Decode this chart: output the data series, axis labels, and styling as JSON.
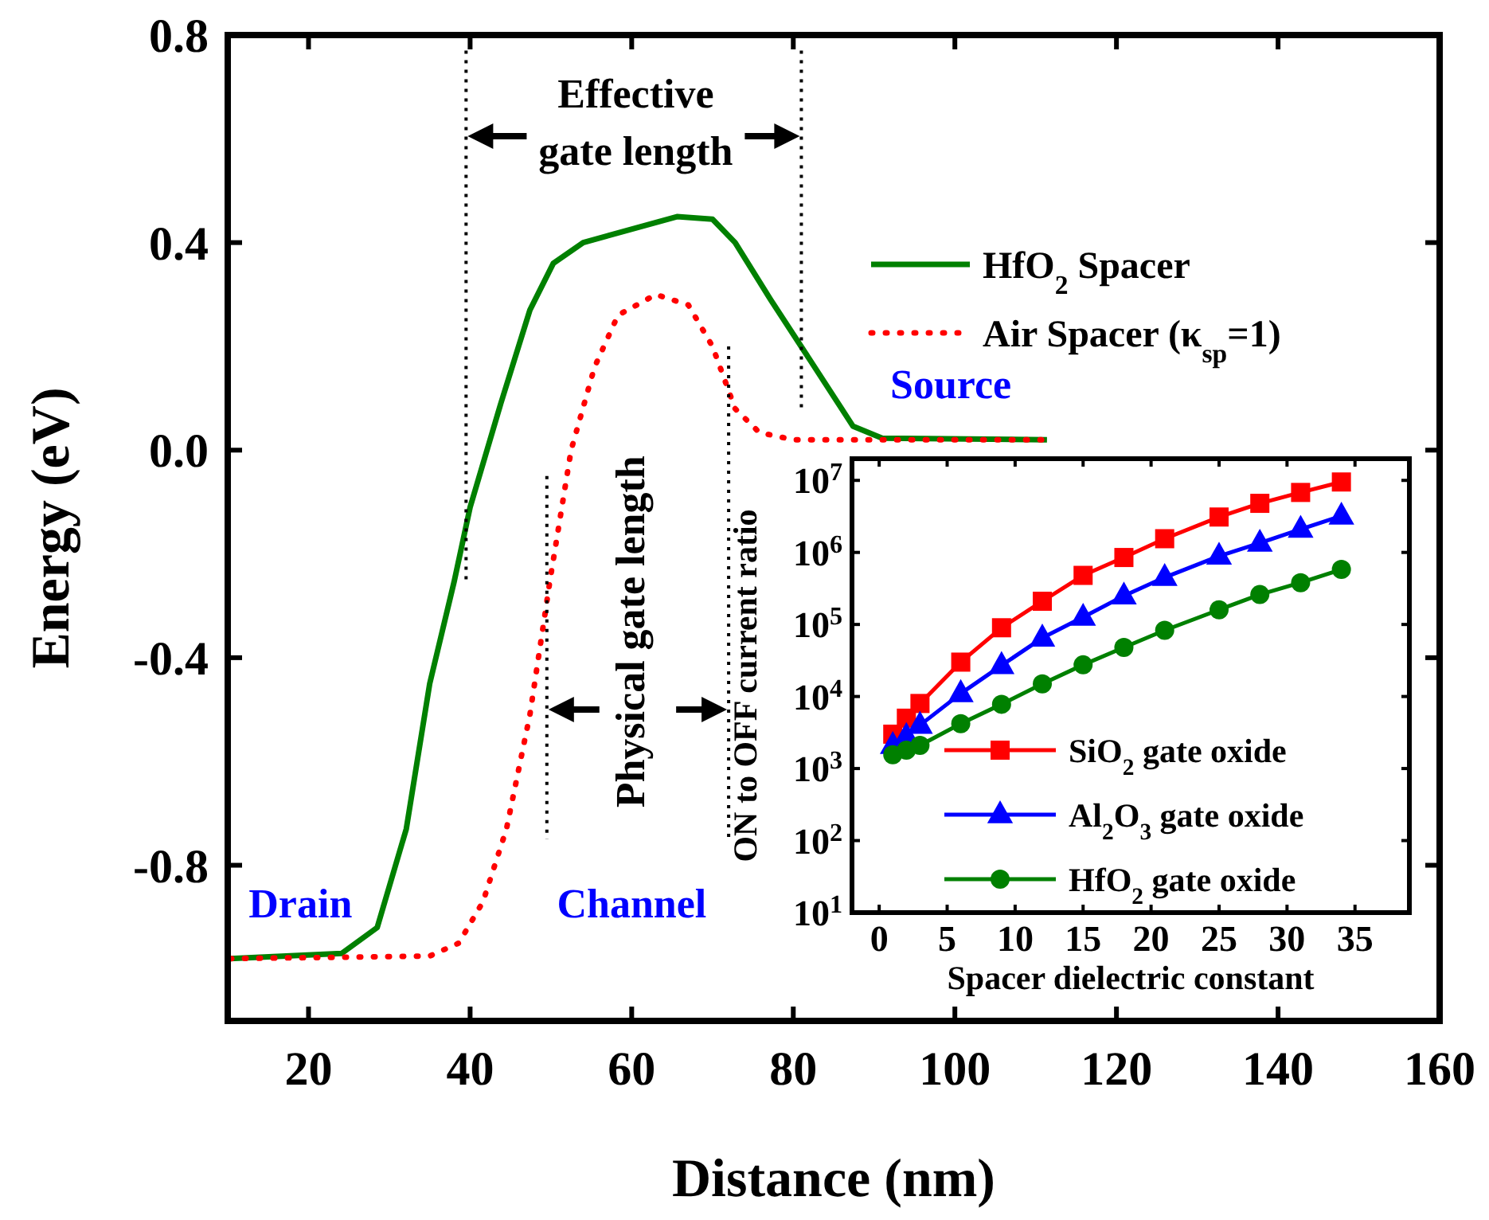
{
  "chart_data": [
    {
      "type": "line",
      "xlabel": "Distance (nm)",
      "ylabel": "Energy (eV)",
      "xlim": [
        10,
        160
      ],
      "ylim": [
        -1.1,
        0.8
      ],
      "xticks": [
        20,
        40,
        60,
        80,
        100,
        120,
        140,
        160
      ],
      "yticks": [
        {
          "value": 0.8,
          "label": "0.8"
        },
        {
          "value": 0.4,
          "label": "0.4"
        },
        {
          "value": 0,
          "label": "0.0"
        },
        {
          "value": -0.4,
          "label": "-0.4"
        },
        {
          "value": -0.8,
          "label": "-0.8"
        }
      ],
      "legend": "top right",
      "grid": false,
      "annotations": [
        "Effective gate length",
        "Physical gate length",
        "Drain",
        "Channel",
        "Source"
      ],
      "series": [
        {
          "name": "HfO$_{2}$ Spacer",
          "color": "#008000",
          "line_style": "solid",
          "x": [
            10.3,
            24.1,
            28.5,
            32.1,
            35,
            38,
            40,
            43.8,
            47.4,
            50.3,
            54,
            65.6,
            70,
            72.8,
            77.2,
            81.6,
            87.4,
            91,
            111.4
          ],
          "values": [
            -0.98,
            -0.97,
            -0.92,
            -0.73,
            -0.45,
            -0.255,
            -0.11,
            0.09,
            0.27,
            0.36,
            0.4,
            0.45,
            0.445,
            0.4,
            0.29,
            0.185,
            0.046,
            0.023,
            0.02
          ]
        },
        {
          "name": "Air Spacer (κ$_{sp}$=1)",
          "color": "#ff0000",
          "line_style": "dotted",
          "x": [
            10.3,
            35,
            38.6,
            41.6,
            44.5,
            47.4,
            49.9,
            52.5,
            55.4,
            58.3,
            63,
            67,
            70,
            72.8,
            75.8,
            80,
            111.4
          ],
          "values": [
            -0.98,
            -0.975,
            -0.95,
            -0.87,
            -0.73,
            -0.51,
            -0.25,
            0,
            0.16,
            0.26,
            0.3,
            0.28,
            0.2,
            0.08,
            0.034,
            0.02,
            0.02
          ]
        }
      ]
    },
    {
      "type": "line",
      "xlabel": "Spacer dielectric constant",
      "ylabel": "ON to OFF current ratio",
      "xlim": [
        -2,
        39
      ],
      "ylim": [
        10,
        20000000
      ],
      "log": true,
      "xticks": [
        0,
        5,
        10,
        15,
        20,
        25,
        30,
        35
      ],
      "yticks": [
        {
          "value": 10,
          "label": "10$^{1}$"
        },
        {
          "value": 100,
          "label": "10$^{2}$"
        },
        {
          "value": 1000,
          "label": "10$^{3}$"
        },
        {
          "value": 10000,
          "label": "10$^{4}$"
        },
        {
          "value": 100000,
          "label": "10$^{5}$"
        },
        {
          "value": 1000000,
          "label": "10$^{6}$"
        },
        {
          "value": 10000000,
          "label": "10$^{7}$"
        }
      ],
      "legend": "bottom right",
      "grid": false,
      "x": [
        1,
        2,
        3,
        6,
        9,
        12,
        15,
        18,
        21,
        25,
        28,
        31,
        34
      ],
      "series": [
        {
          "name": "SiO$_{2}$ gate oxide",
          "color": "#ff0000",
          "marker": "square",
          "values": [
            3000,
            5000,
            8000,
            30000,
            90000,
            210000,
            480000,
            850000,
            1550000,
            3100000,
            4800000,
            6800000,
            9500000
          ]
        },
        {
          "name": "Al$_{2}$O$_{3}$ gate oxide",
          "color": "#0000ff",
          "marker": "triangle",
          "values": [
            2100,
            2800,
            4000,
            11000,
            27000,
            65000,
            126000,
            250000,
            450000,
            890000,
            1350000,
            2100000,
            3200000
          ]
        },
        {
          "name": "HfO$_{2}$ gate oxide",
          "color": "#008000",
          "marker": "circle",
          "values": [
            1550,
            1800,
            2100,
            4200,
            7800,
            15000,
            27500,
            48000,
            83000,
            160000,
            260000,
            380000,
            580000
          ]
        }
      ]
    }
  ]
}
